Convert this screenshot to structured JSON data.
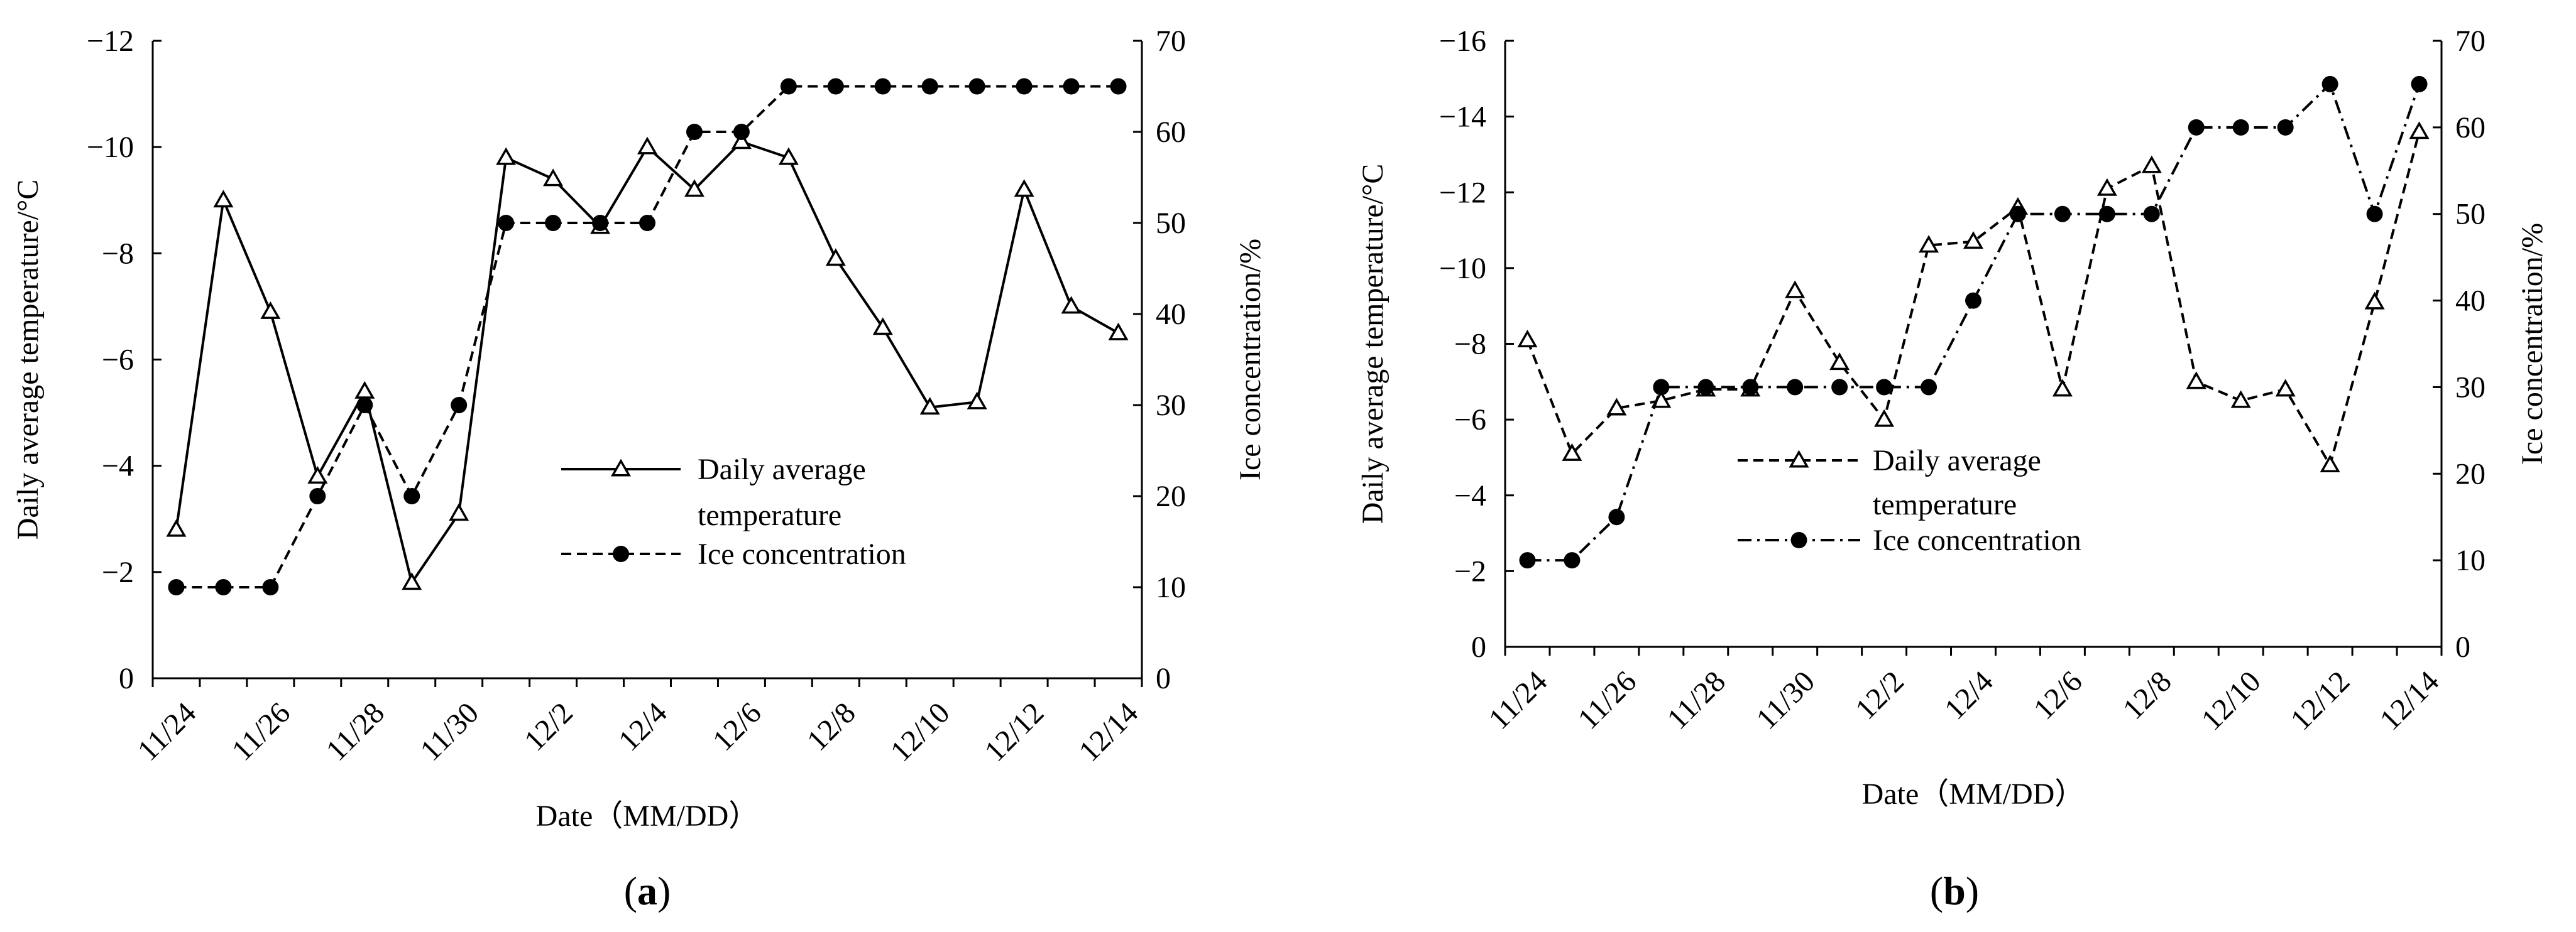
{
  "chart_data": [
    {
      "type": "line",
      "panel_label": "(a)",
      "panel_letter": "a",
      "xlabel": "Date（MM/DD）",
      "ylabel": "Daily average temperature/°C",
      "y2label": "Ice concentration/%",
      "categories": [
        "11/24",
        "11/25",
        "11/26",
        "11/27",
        "11/28",
        "11/29",
        "11/30",
        "12/1",
        "12/2",
        "12/3",
        "12/4",
        "12/5",
        "12/6",
        "12/7",
        "12/8",
        "12/9",
        "12/10",
        "12/11",
        "12/12",
        "12/13",
        "12/14"
      ],
      "x_tick_labels": [
        "11/24",
        "11/26",
        "11/28",
        "11/30",
        "12/2",
        "12/4",
        "12/6",
        "12/8",
        "12/10",
        "12/12",
        "12/14"
      ],
      "ylim": [
        0,
        -12
      ],
      "y_ticks": [
        "0",
        "-2",
        "-4",
        "-6",
        "-8",
        "-10",
        "-12"
      ],
      "y2lim": [
        0,
        70
      ],
      "y2_ticks": [
        "0",
        "10",
        "20",
        "30",
        "40",
        "50",
        "60",
        "70"
      ],
      "legend_position": "center-right",
      "series": [
        {
          "name": "Daily average temperature",
          "legend_lines": [
            "Daily average",
            "temperature"
          ],
          "axis": "left",
          "line_style": "solid",
          "marker": "open-triangle",
          "values": [
            -2.8,
            -9.0,
            -6.9,
            -3.8,
            -5.4,
            -1.8,
            -3.1,
            -9.8,
            -9.4,
            -8.5,
            -10.0,
            -9.2,
            -10.1,
            -9.8,
            -7.9,
            -6.6,
            -5.1,
            -5.2,
            -9.2,
            -7.0,
            -6.5
          ]
        },
        {
          "name": "Ice concentration",
          "legend_lines": [
            "Ice concentration"
          ],
          "axis": "right",
          "line_style": "dashed",
          "marker": "filled-circle",
          "values": [
            10,
            10,
            10,
            20,
            30,
            20,
            30,
            50,
            50,
            50,
            50,
            60,
            60,
            65,
            65,
            65,
            65,
            65,
            65,
            65,
            65
          ]
        }
      ]
    },
    {
      "type": "line",
      "panel_label": "(b)",
      "panel_letter": "b",
      "xlabel": "Date（MM/DD）",
      "ylabel": "Daily average temperature/°C",
      "y2label": "Ice concentration/%",
      "categories": [
        "11/24",
        "11/25",
        "11/26",
        "11/27",
        "11/28",
        "11/29",
        "11/30",
        "12/1",
        "12/2",
        "12/3",
        "12/4",
        "12/5",
        "12/6",
        "12/7",
        "12/8",
        "12/9",
        "12/10",
        "12/11",
        "12/12",
        "12/13",
        "12/14"
      ],
      "x_tick_labels": [
        "11/24",
        "11/26",
        "11/28",
        "11/30",
        "12/2",
        "12/4",
        "12/6",
        "12/8",
        "12/10",
        "12/12",
        "12/14"
      ],
      "ylim": [
        0,
        -16
      ],
      "y_ticks": [
        "0",
        "-2",
        "-4",
        "-6",
        "-8",
        "-10",
        "-12",
        "-14",
        "-16"
      ],
      "y2lim": [
        0,
        70
      ],
      "y2_ticks": [
        "0",
        "10",
        "20",
        "30",
        "40",
        "50",
        "60",
        "70"
      ],
      "legend_position": "center",
      "series": [
        {
          "name": "Daily average temperature",
          "legend_lines": [
            "Daily average",
            "temperature"
          ],
          "axis": "left",
          "line_style": "dashed",
          "marker": "open-triangle",
          "values": [
            -8.1,
            -5.1,
            -6.3,
            -6.5,
            -6.8,
            -6.8,
            -9.4,
            -7.5,
            -6.0,
            -10.6,
            -10.7,
            -11.6,
            -6.8,
            -12.1,
            -12.7,
            -7.0,
            -6.5,
            -6.8,
            -4.8,
            -9.1,
            -13.6
          ]
        },
        {
          "name": "Ice concentration",
          "legend_lines": [
            "Ice concentration"
          ],
          "axis": "right",
          "line_style": "dash-dot",
          "marker": "filled-circle",
          "values": [
            10,
            10,
            15,
            30,
            30,
            30,
            30,
            30,
            30,
            30,
            40,
            50,
            50,
            50,
            50,
            60,
            60,
            60,
            65,
            50,
            65
          ]
        }
      ]
    }
  ]
}
